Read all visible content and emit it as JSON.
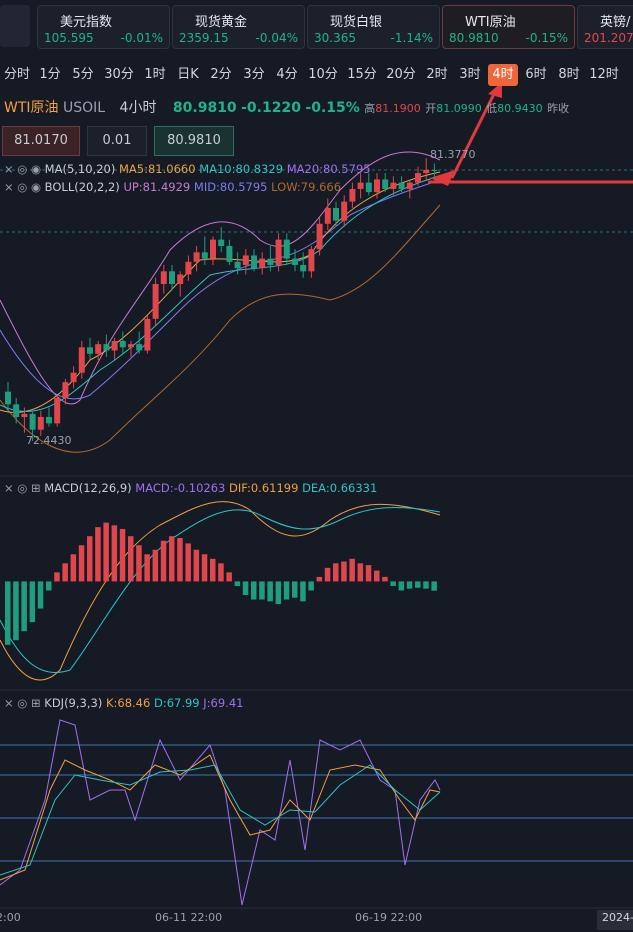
{
  "tickers": [
    {
      "name": "美元指数",
      "price": "105.595",
      "change": "-0.01%"
    },
    {
      "name": "现货黄金",
      "price": "2359.15",
      "change": "-0.04%"
    },
    {
      "name": "现货白银",
      "price": "30.365",
      "change": "-1.14%"
    },
    {
      "name": "WTI原油",
      "price": "80.9810",
      "change": "-0.15%"
    },
    {
      "name": "英镑/",
      "price": "201.207"
    }
  ],
  "timeframes": [
    "分时",
    "1分",
    "5分",
    "30分",
    "1时",
    "日K",
    "2分",
    "3分",
    "4分",
    "10分",
    "15分",
    "20分",
    "2时",
    "3时",
    "4时",
    "6时",
    "8时",
    "12时"
  ],
  "header": {
    "name": "WTI原油",
    "code": "USOIL",
    "period": "4小时",
    "price": "80.9810",
    "change": "-0.1220",
    "percent": "-0.15%",
    "high_label": "高",
    "high": "81.1900",
    "open_label": "开",
    "open": "81.0990",
    "low_label": "低",
    "low": "80.9430",
    "prev_label": "昨收"
  },
  "inputs": {
    "sell": "81.0170",
    "lot": "0.01",
    "buy": "80.9810"
  },
  "indicators": {
    "ma": [
      "MA(5,10,20)",
      "MA5:81.0660",
      "MA10:80.8329",
      "MA20:80.5795"
    ],
    "boll": [
      "BOLL(20,2,2)",
      "UP:81.4929",
      "MID:80.5795",
      "LOW:79.666"
    ],
    "macd": [
      "MACD(12,26,9)",
      "MACD:-0.10263",
      "DIF:0.61199",
      "DEA:0.66331"
    ],
    "kdj": [
      "KDJ(9,3,3)",
      "K:68.46",
      "D:67.99",
      "J:69.41"
    ]
  },
  "price_labels": {
    "high": "81.3770",
    "low": "72.4430"
  },
  "time_labels": [
    "2:00",
    "06-11 22:00",
    "06-19 22:00",
    "2024-"
  ],
  "chart_data": {
    "type": "candlestick",
    "ylim": [
      72.443,
      81.377
    ],
    "candles": [
      [
        74.0,
        74.3,
        73.4,
        73.6
      ],
      [
        73.6,
        73.8,
        73.0,
        73.2
      ],
      [
        73.2,
        73.5,
        72.7,
        73.3
      ],
      [
        73.3,
        73.4,
        72.443,
        72.8
      ],
      [
        72.8,
        73.4,
        72.6,
        73.2
      ],
      [
        73.2,
        73.5,
        72.9,
        73.0
      ],
      [
        73.0,
        73.9,
        72.9,
        73.8
      ],
      [
        73.8,
        74.4,
        73.6,
        74.3
      ],
      [
        74.3,
        74.8,
        74.1,
        74.6
      ],
      [
        74.6,
        75.6,
        74.4,
        75.4
      ],
      [
        75.4,
        75.7,
        75.0,
        75.2
      ],
      [
        75.2,
        75.6,
        75.0,
        75.5
      ],
      [
        75.5,
        75.8,
        75.1,
        75.3
      ],
      [
        75.3,
        75.7,
        75.0,
        75.6
      ],
      [
        75.6,
        75.9,
        75.2,
        75.4
      ],
      [
        75.4,
        75.6,
        75.1,
        75.5
      ],
      [
        75.5,
        75.9,
        75.2,
        75.3
      ],
      [
        75.3,
        76.4,
        75.2,
        76.3
      ],
      [
        76.3,
        77.6,
        76.1,
        77.4
      ],
      [
        77.4,
        78.0,
        77.1,
        77.8
      ],
      [
        77.8,
        78.0,
        77.2,
        77.4
      ],
      [
        77.4,
        77.8,
        77.0,
        77.7
      ],
      [
        77.7,
        78.3,
        77.5,
        78.1
      ],
      [
        78.1,
        78.6,
        77.8,
        78.4
      ],
      [
        78.4,
        78.9,
        78.0,
        78.2
      ],
      [
        78.2,
        78.9,
        78.0,
        78.8
      ],
      [
        78.8,
        79.2,
        78.4,
        78.6
      ],
      [
        78.6,
        78.8,
        78.0,
        78.1
      ],
      [
        78.1,
        78.4,
        77.7,
        77.9
      ],
      [
        78.0,
        78.5,
        77.7,
        78.3
      ],
      [
        78.3,
        78.5,
        77.8,
        77.9
      ],
      [
        77.9,
        78.4,
        77.7,
        78.2
      ],
      [
        78.2,
        78.6,
        77.8,
        78.0
      ],
      [
        78.0,
        79.0,
        77.8,
        78.8
      ],
      [
        78.8,
        79.0,
        78.0,
        78.2
      ],
      [
        78.2,
        78.5,
        77.8,
        78.0
      ],
      [
        78.0,
        78.4,
        77.6,
        77.8
      ],
      [
        77.8,
        78.6,
        77.6,
        78.5
      ],
      [
        78.5,
        79.5,
        78.3,
        79.3
      ],
      [
        79.3,
        80.1,
        79.1,
        79.8
      ],
      [
        79.8,
        80.0,
        79.2,
        79.4
      ],
      [
        79.4,
        80.2,
        79.2,
        80.0
      ],
      [
        80.0,
        80.6,
        79.8,
        80.4
      ],
      [
        80.4,
        80.9,
        80.1,
        80.6
      ],
      [
        80.6,
        80.9,
        80.2,
        80.3
      ],
      [
        80.3,
        80.9,
        80.1,
        80.7
      ],
      [
        80.7,
        80.9,
        80.3,
        80.4
      ],
      [
        80.4,
        80.8,
        80.2,
        80.6
      ],
      [
        80.6,
        80.8,
        80.3,
        80.4
      ],
      [
        80.4,
        80.7,
        80.1,
        80.6
      ],
      [
        80.6,
        81.1,
        80.5,
        80.9
      ],
      [
        80.9,
        81.377,
        80.7,
        81.0
      ],
      [
        81.0,
        81.2,
        80.7,
        80.981
      ]
    ],
    "up_color": "#e0474c",
    "down_color": "#1e9e7f",
    "macd_hist": [
      -0.7,
      -0.65,
      -0.55,
      -0.45,
      -0.3,
      -0.1,
      0.1,
      0.2,
      0.3,
      0.4,
      0.5,
      0.6,
      0.65,
      0.62,
      0.58,
      0.5,
      0.4,
      0.3,
      0.35,
      0.45,
      0.5,
      0.48,
      0.42,
      0.35,
      0.3,
      0.25,
      0.2,
      0.1,
      -0.05,
      -0.15,
      -0.2,
      -0.2,
      -0.22,
      -0.25,
      -0.2,
      -0.18,
      -0.22,
      -0.1,
      0.05,
      0.15,
      0.2,
      0.22,
      0.25,
      0.2,
      0.18,
      0.12,
      0.05,
      -0.05,
      -0.1,
      -0.08,
      -0.07,
      -0.08,
      -0.10263
    ],
    "macd_ylim": [
      -1.2,
      0.9
    ]
  }
}
